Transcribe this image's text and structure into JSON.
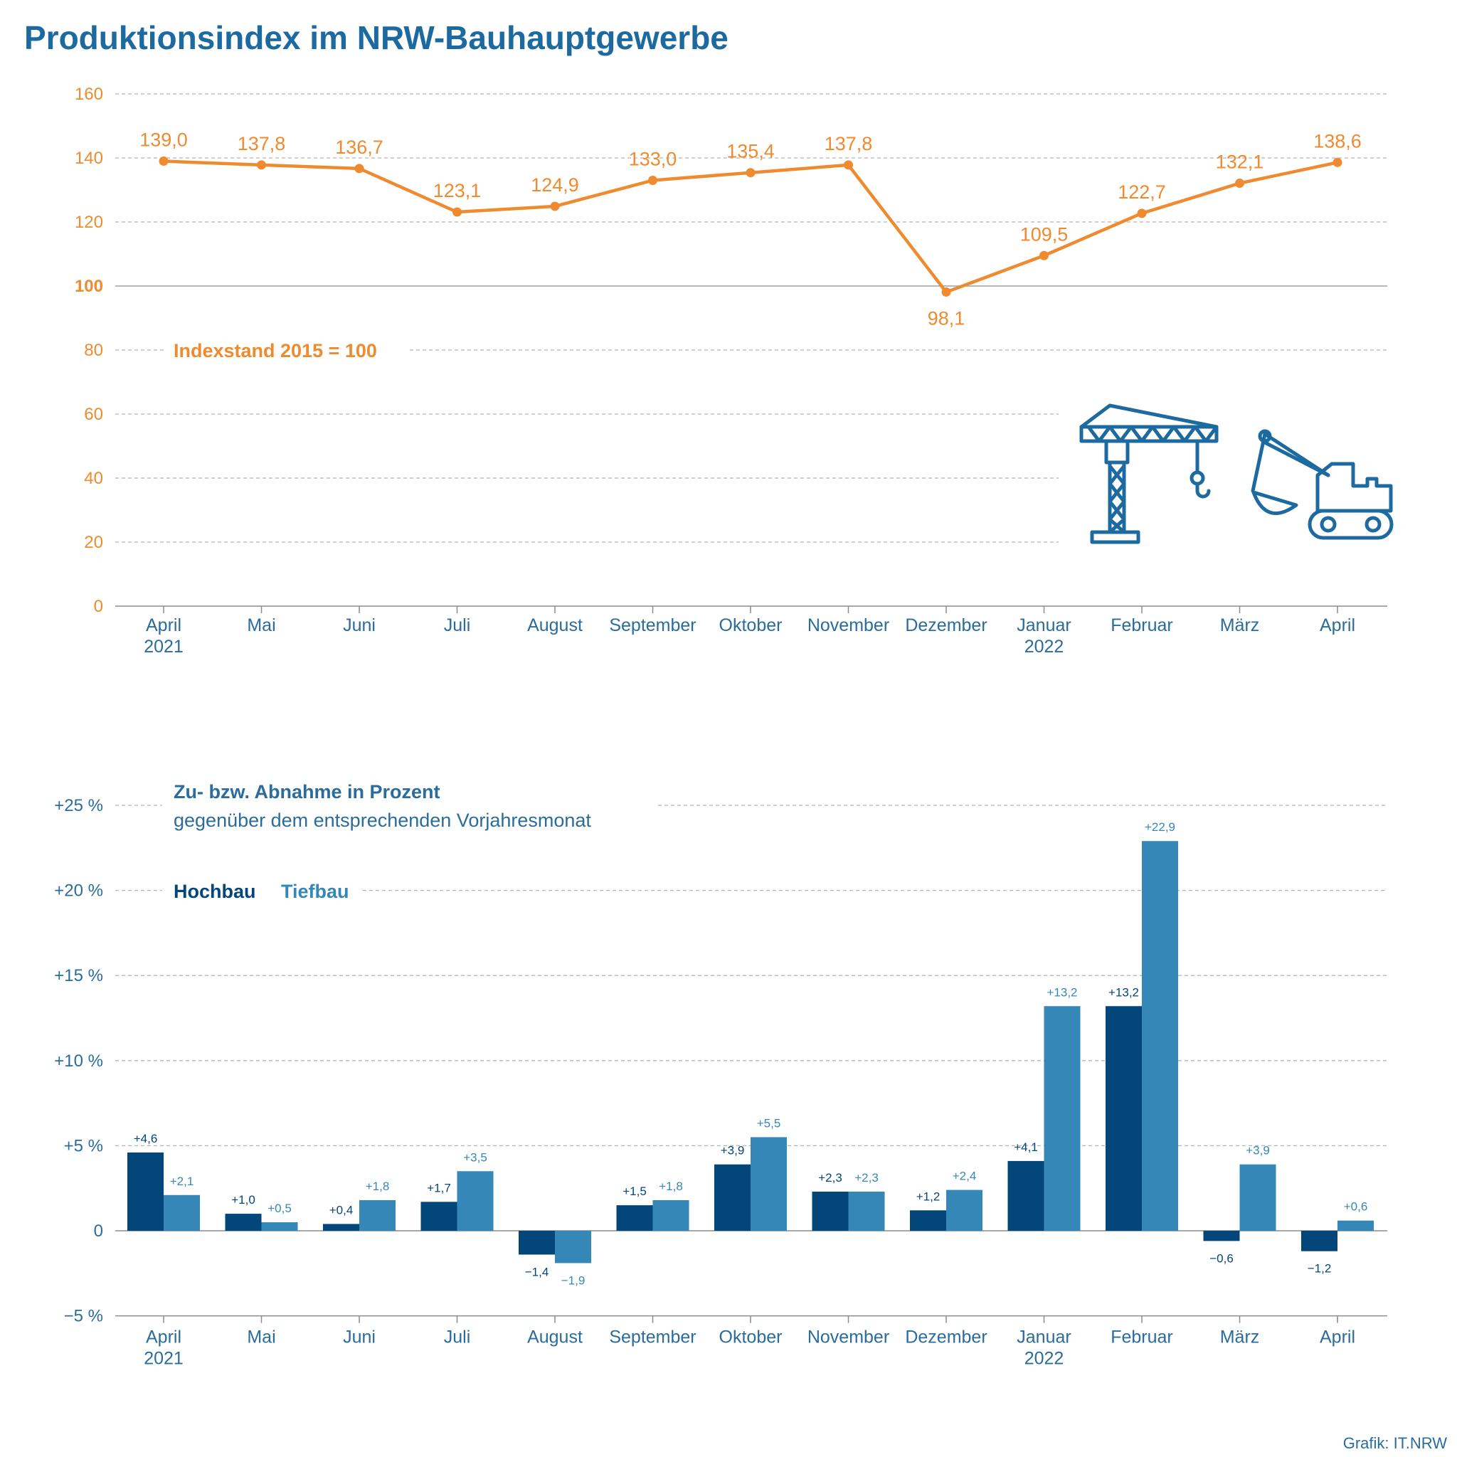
{
  "page": {
    "title": "Produktionsindex im NRW-Bauhauptgewerbe",
    "credit": "Grafik: IT.NRW"
  },
  "colors": {
    "orange": "#f08a2f",
    "blue_text": "#2a6c9c",
    "hochbau": "#02467a",
    "tiefbau": "#3587b8",
    "grid": "#b5b5b5",
    "icon": "#1c6aa0"
  },
  "icons": [
    "crane-icon",
    "excavator-icon"
  ],
  "chart_data": [
    {
      "type": "line",
      "categories": [
        "April",
        "Mai",
        "Juni",
        "Juli",
        "August",
        "September",
        "Oktober",
        "November",
        "Dezember",
        "Januar",
        "Februar",
        "März",
        "April"
      ],
      "year_labels": [
        "2021",
        "",
        "",
        "",
        "",
        "",
        "",
        "",
        "",
        "2022",
        "",
        "",
        ""
      ],
      "values": [
        139.0,
        137.8,
        136.7,
        123.1,
        124.9,
        133.0,
        135.4,
        137.8,
        98.1,
        109.5,
        122.7,
        132.1,
        138.6
      ],
      "value_labels": [
        "139,0",
        "137,8",
        "136,7",
        "123,1",
        "124,9",
        "133,0",
        "135,4",
        "137,8",
        "98,1",
        "109,5",
        "122,7",
        "132,1",
        "138,6"
      ],
      "annotation": "Indexstand 2015 = 100",
      "ylim": [
        0,
        160
      ],
      "yticks": [
        0,
        20,
        40,
        60,
        80,
        100,
        120,
        140,
        160
      ],
      "ytick_labels": [
        "0",
        "20",
        "40",
        "60",
        "80",
        "100",
        "120",
        "140",
        "160"
      ],
      "grid": true
    },
    {
      "type": "bar",
      "title": "Zu- bzw. Abnahme in Prozent",
      "subtitle": "gegenüber dem entsprechenden Vorjahresmonat",
      "categories": [
        "April",
        "Mai",
        "Juni",
        "Juli",
        "August",
        "September",
        "Oktober",
        "November",
        "Dezember",
        "Januar",
        "Februar",
        "März",
        "April"
      ],
      "year_labels": [
        "2021",
        "",
        "",
        "",
        "",
        "",
        "",
        "",
        "",
        "2022",
        "",
        "",
        ""
      ],
      "series": [
        {
          "name": "Hochbau",
          "values": [
            4.6,
            1.0,
            0.4,
            1.7,
            -1.4,
            1.5,
            3.9,
            2.3,
            1.2,
            4.1,
            13.2,
            -0.6,
            -1.2
          ],
          "labels": [
            "+4,6",
            "+1,0",
            "+0,4",
            "+1,7",
            "−1,4",
            "+1,5",
            "+3,9",
            "+2,3",
            "+1,2",
            "+4,1",
            "+13,2",
            "−0,6",
            "−1,2"
          ]
        },
        {
          "name": "Tiefbau",
          "values": [
            2.1,
            0.5,
            1.8,
            3.5,
            -1.9,
            1.8,
            5.5,
            2.3,
            2.4,
            13.2,
            22.9,
            3.9,
            0.6
          ],
          "labels": [
            "+2,1",
            "+0,5",
            "+1,8",
            "+3,5",
            "−1,9",
            "+1,8",
            "+5,5",
            "+2,3",
            "+2,4",
            "+13,2",
            "+22,9",
            "+3,9",
            "+0,6"
          ]
        }
      ],
      "ylim": [
        -5,
        25
      ],
      "yticks": [
        -5,
        0,
        5,
        10,
        15,
        20,
        25
      ],
      "ytick_labels": [
        "−5 %",
        "0",
        "+5 %",
        "+10 %",
        "+15 %",
        "+20 %",
        "+25 %"
      ],
      "legend": "top-left",
      "grid": true
    }
  ]
}
